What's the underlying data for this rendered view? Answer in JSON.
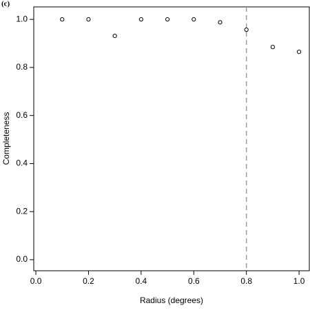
{
  "chart_data": {
    "type": "scatter",
    "panel_label": "(c)",
    "x_label": "Radius (degrees)",
    "y_label": "Completeness",
    "x": [
      0.1,
      0.2,
      0.3,
      0.4,
      0.5,
      0.6,
      0.7,
      0.8,
      0.9,
      1.0
    ],
    "series": [
      {
        "color": "#000000",
        "values": [
          1.0,
          1.0,
          0.931,
          1.0,
          1.0,
          1.0,
          0.988,
          0.957,
          0.885,
          0.865
        ]
      }
    ],
    "xlim": [
      -0.008,
      1.039
    ],
    "ylim": [
      -0.046,
      1.052
    ],
    "xticks": [
      {
        "value": 0,
        "label": "0.0"
      },
      {
        "value": 0.2,
        "label": "0.2"
      },
      {
        "value": 0.4,
        "label": "0.4"
      },
      {
        "value": 0.6,
        "label": "0.6"
      },
      {
        "value": 0.8,
        "label": "0.8"
      },
      {
        "value": 1,
        "label": "1.0"
      }
    ],
    "yticks": [
      {
        "value": 0,
        "label": "0.0"
      },
      {
        "value": 0.2,
        "label": "0.2"
      },
      {
        "value": 0.4,
        "label": "0.4"
      },
      {
        "value": 0.6,
        "label": "0.6"
      },
      {
        "value": 0.8,
        "label": "0.8"
      },
      {
        "value": 1,
        "label": "1.0"
      }
    ],
    "vline": 0.8,
    "vline_color": "#999999"
  }
}
